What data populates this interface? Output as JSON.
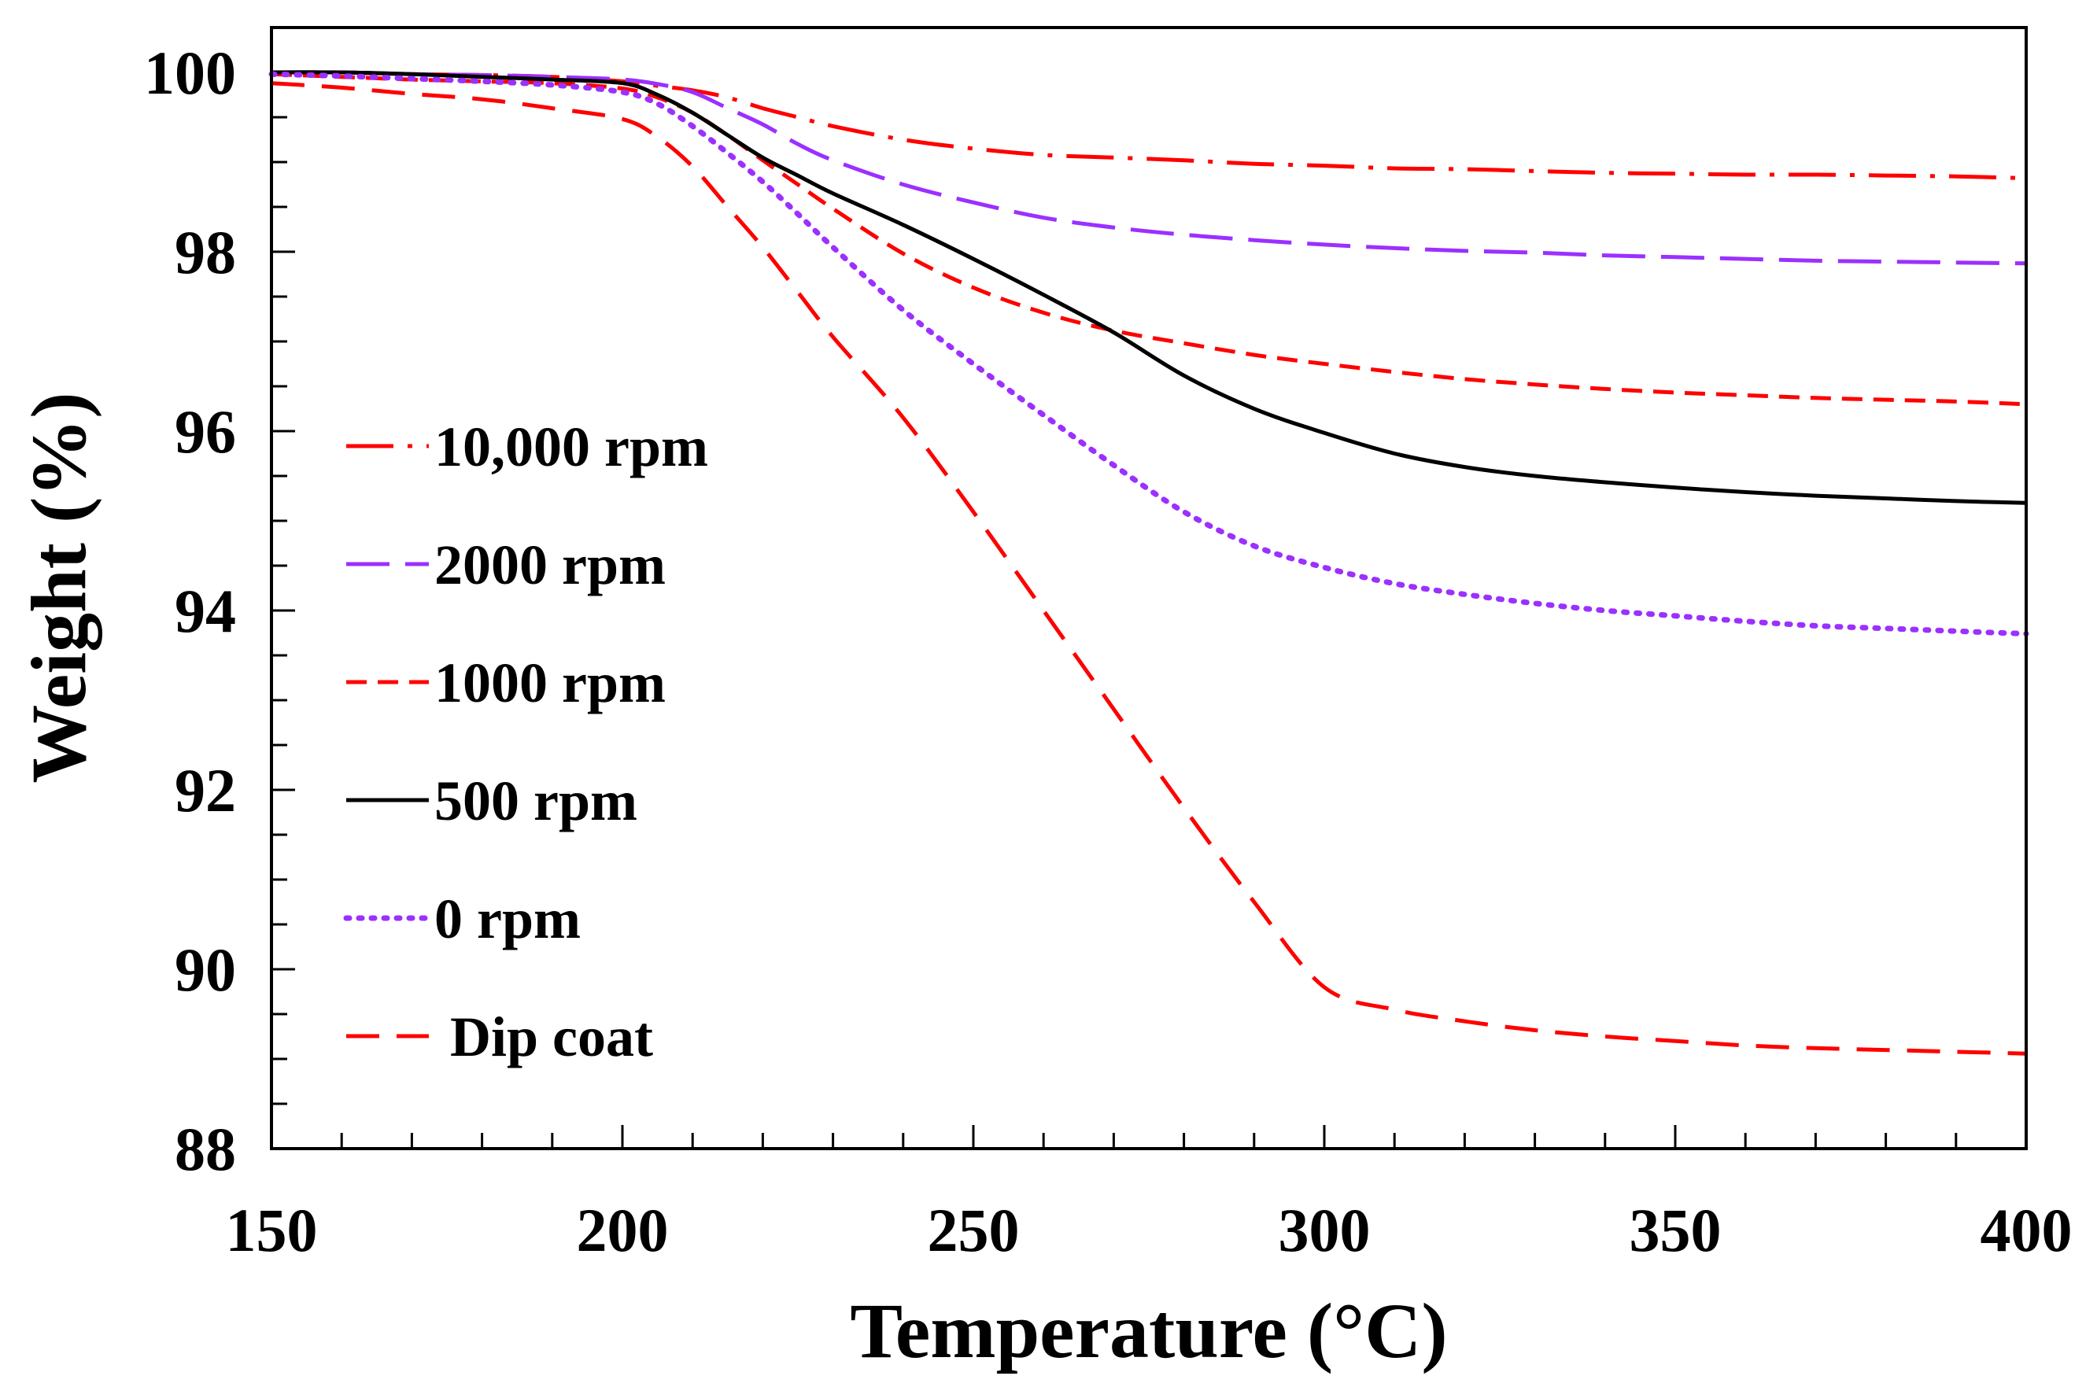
{
  "chart_data": {
    "type": "line",
    "title": "",
    "xlabel": "Temperature (°C)",
    "ylabel": "Weight (%)",
    "xlim": [
      150,
      400
    ],
    "ylim": [
      88,
      100.5
    ],
    "xticks": [
      150,
      200,
      250,
      300,
      350,
      400
    ],
    "yticks": [
      88,
      90,
      92,
      94,
      96,
      98,
      100
    ],
    "x_minor_step": 10,
    "y_minor_step": 0.5,
    "grid": false,
    "legend_position": "left-center",
    "x": [
      150,
      160,
      170,
      180,
      190,
      200,
      205,
      210,
      215,
      220,
      225,
      230,
      240,
      250,
      260,
      270,
      280,
      290,
      300,
      310,
      320,
      330,
      340,
      350,
      360,
      370,
      380,
      390,
      400
    ],
    "series": [
      {
        "name": "10,000 rpm",
        "color": "#ff0000",
        "dash": "dashdot",
        "values": [
          100.0,
          100.0,
          99.98,
          99.97,
          99.95,
          99.9,
          99.85,
          99.8,
          99.72,
          99.6,
          99.5,
          99.4,
          99.25,
          99.15,
          99.08,
          99.05,
          99.02,
          98.98,
          98.96,
          98.93,
          98.92,
          98.9,
          98.88,
          98.87,
          98.86,
          98.86,
          98.85,
          98.84,
          98.82
        ]
      },
      {
        "name": "2000 rpm",
        "color": "#9b30ff",
        "dash": "longdash",
        "values": [
          100.0,
          100.0,
          99.98,
          99.97,
          99.95,
          99.92,
          99.87,
          99.78,
          99.6,
          99.42,
          99.2,
          99.02,
          98.75,
          98.55,
          98.38,
          98.27,
          98.19,
          98.13,
          98.08,
          98.04,
          98.01,
          97.99,
          97.96,
          97.94,
          97.92,
          97.9,
          97.89,
          97.88,
          97.87
        ]
      },
      {
        "name": "1000 rpm",
        "color": "#ff0000",
        "dash": "shortdash",
        "values": [
          99.98,
          99.95,
          99.92,
          99.9,
          99.88,
          99.82,
          99.72,
          99.55,
          99.3,
          99.02,
          98.75,
          98.48,
          97.98,
          97.6,
          97.32,
          97.12,
          96.98,
          96.85,
          96.75,
          96.66,
          96.58,
          96.52,
          96.47,
          96.43,
          96.4,
          96.37,
          96.35,
          96.33,
          96.3
        ]
      },
      {
        "name": "500 rpm",
        "color": "#000000",
        "dash": "solid",
        "values": [
          100.0,
          100.0,
          99.98,
          99.95,
          99.92,
          99.88,
          99.75,
          99.55,
          99.3,
          99.05,
          98.85,
          98.65,
          98.3,
          97.92,
          97.52,
          97.1,
          96.62,
          96.25,
          95.98,
          95.75,
          95.6,
          95.5,
          95.43,
          95.37,
          95.32,
          95.28,
          95.25,
          95.22,
          95.2
        ]
      },
      {
        "name": "0 rpm",
        "color": "#9b30ff",
        "dash": "dotted",
        "values": [
          99.98,
          99.96,
          99.93,
          99.9,
          99.86,
          99.78,
          99.65,
          99.4,
          99.1,
          98.78,
          98.42,
          98.05,
          97.35,
          96.75,
          96.18,
          95.62,
          95.1,
          94.72,
          94.48,
          94.3,
          94.18,
          94.08,
          94.0,
          93.94,
          93.88,
          93.83,
          93.8,
          93.77,
          93.74
        ]
      },
      {
        "name": "Dip coat",
        "color": "#ff0000",
        "dash": "dashed",
        "values": [
          99.88,
          99.83,
          99.76,
          99.7,
          99.6,
          99.48,
          99.28,
          98.95,
          98.5,
          98.05,
          97.55,
          97.05,
          96.15,
          95.1,
          94.0,
          92.9,
          91.8,
          90.75,
          89.8,
          89.55,
          89.42,
          89.32,
          89.25,
          89.2,
          89.15,
          89.12,
          89.1,
          89.08,
          89.06
        ]
      }
    ]
  }
}
